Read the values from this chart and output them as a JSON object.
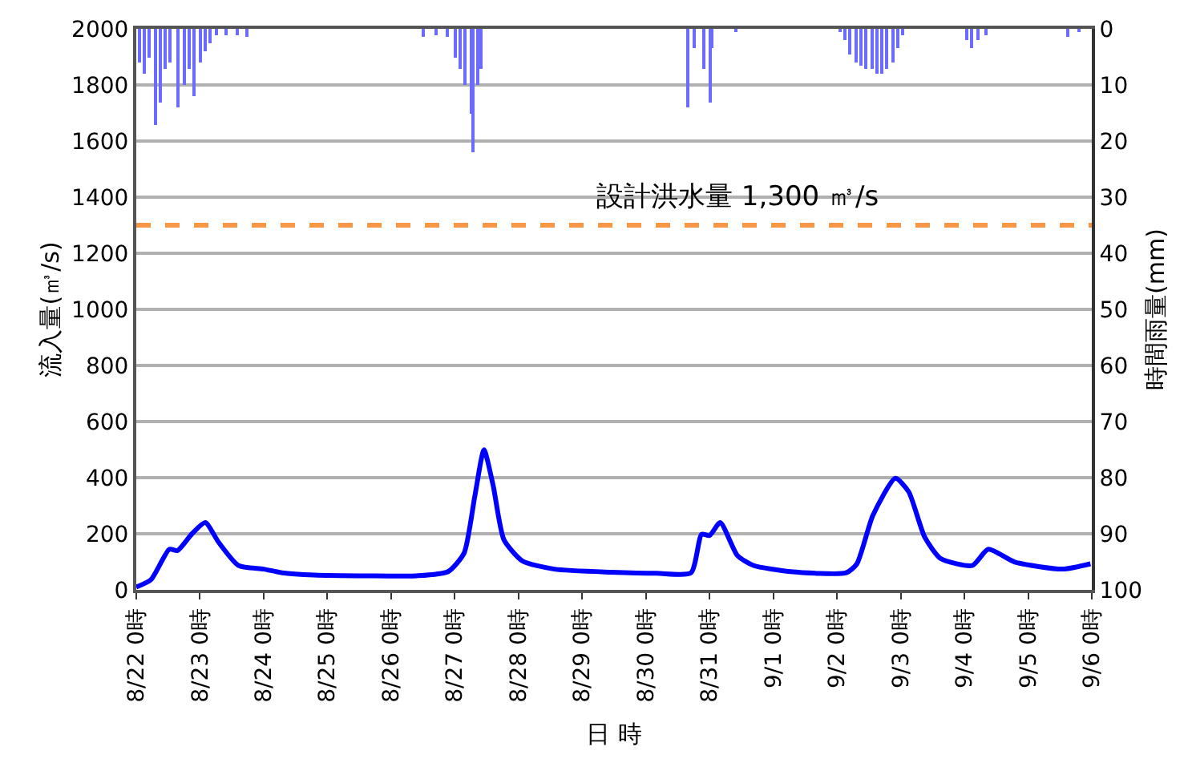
{
  "chart_data": {
    "type": "line",
    "xlabel": "日 時",
    "ylabel": "流入量(㎥/s)",
    "y2label": "時間雨量(mm)",
    "xlim": [
      "--08-22",
      "--09-06"
    ],
    "xticks": [
      {
        "value": "--08-22",
        "label": "8/22 0時"
      },
      {
        "value": "--08-23",
        "label": "8/23 0時"
      },
      {
        "value": "--08-24",
        "label": "8/24 0時"
      },
      {
        "value": "--08-25",
        "label": "8/25 0時"
      },
      {
        "value": "--08-26",
        "label": "8/26 0時"
      },
      {
        "value": "--08-27",
        "label": "8/27 0時"
      },
      {
        "value": "--08-28",
        "label": "8/28 0時"
      },
      {
        "value": "--08-29",
        "label": "8/29 0時"
      },
      {
        "value": "--08-30",
        "label": "8/30 0時"
      },
      {
        "value": "--08-31",
        "label": "8/31 0時"
      },
      {
        "value": "--09-01",
        "label": "9/1 0時"
      },
      {
        "value": "--09-02",
        "label": "9/2 0時"
      },
      {
        "value": "--09-03",
        "label": "9/3 0時"
      },
      {
        "value": "--09-04",
        "label": "9/4 0時"
      },
      {
        "value": "--09-05",
        "label": "9/5 0時"
      },
      {
        "value": "--09-06",
        "label": "9/6 0時"
      }
    ],
    "ylim": [
      0,
      2000
    ],
    "yticks": [
      0,
      200,
      400,
      600,
      800,
      1000,
      1200,
      1400,
      1600,
      1800,
      2000
    ],
    "y2lim": [
      100,
      0
    ],
    "y2ticks": [
      0,
      10,
      20,
      30,
      40,
      50,
      60,
      70,
      80,
      90,
      100
    ],
    "grid": "y",
    "marker": "none",
    "line_style": "solid",
    "ref_lines": [
      {
        "axis": "y",
        "value": 1300,
        "label": "設計洪水量 1,300 ㎥/s",
        "color": "#f79646",
        "line_style": "dashed"
      }
    ],
    "series": [
      {
        "color": "#0000ff",
        "x": [
          "--08-22T00:00",
          "--08-22T05:30",
          "--08-22T12:30",
          "--08-22T15:30",
          "--08-22T21:00",
          "--08-23T02:00",
          "--08-23T07:00",
          "--08-23T14:30",
          "--08-24T00:00",
          "--08-24T07:00",
          "--08-24T19:00",
          "--08-25T15:00",
          "--08-26T09:30",
          "--08-26T21:30",
          "--08-27T03:30",
          "--08-27T07:30",
          "--08-27T11:00",
          "--08-27T14:30",
          "--08-27T18:30",
          "--08-28T01:30",
          "--08-28T13:30",
          "--08-30T04:00",
          "--08-30T17:00",
          "--08-30T21:00",
          "--08-31T00:00",
          "--08-31T04:00",
          "--08-31T10:30",
          "--08-31T16:30",
          "--09-01T06:30",
          "--09-02T03:30",
          "--09-02T07:30",
          "--09-02T13:30",
          "--09-02T22:00",
          "--09-03T03:00",
          "--09-03T09:00",
          "--09-03T15:00",
          "--09-04T03:00",
          "--09-04T09:00",
          "--09-04T19:00",
          "--09-05T13:00",
          "--09-05T23:30"
        ],
        "values": [
          10,
          36,
          145,
          140,
          200,
          240,
          170,
          87,
          74,
          61,
          53,
          50,
          50,
          65,
          131,
          331,
          499,
          370,
          179,
          103,
          74,
          59,
          61,
          198,
          194,
          240,
          122,
          87,
          65,
          61,
          93,
          265,
          398,
          350,
          189,
          112,
          87,
          145,
          99,
          74,
          93
        ]
      },
      {
        "type": "bar",
        "axis": "y2",
        "color": "#6b6bff",
        "x": [
          "--08-22T01:00",
          "--08-22T03:00",
          "--08-22T05:00",
          "--08-22T07:00",
          "--08-22T09:00",
          "--08-22T11:00",
          "--08-22T13:00",
          "--08-22T16:00",
          "--08-22T18:00",
          "--08-22T20:00",
          "--08-22T22:00",
          "--08-23T00:00",
          "--08-23T02:00",
          "--08-23T04:00",
          "--08-23T06:00",
          "--08-23T10:00",
          "--08-23T14:00",
          "--08-23T18:00",
          "--08-26T12:00",
          "--08-26T17:00",
          "--08-26T21:00",
          "--08-27T00:00",
          "--08-27T02:00",
          "--08-27T04:00",
          "--08-27T06:00",
          "--08-27T07:00",
          "--08-27T09:00",
          "--08-27T10:00",
          "--08-30T16:00",
          "--08-30T18:00",
          "--08-30T22:00",
          "--08-31T00:00",
          "--08-31T01:00",
          "--08-31T10:00",
          "--09-02T01:00",
          "--09-02T03:00",
          "--09-02T05:00",
          "--09-02T07:00",
          "--09-02T09:00",
          "--09-02T11:00",
          "--09-02T13:00",
          "--09-02T15:00",
          "--09-02T17:00",
          "--09-02T19:00",
          "--09-02T21:00",
          "--09-02T23:00",
          "--09-03T01:00",
          "--09-04T01:00",
          "--09-04T03:00",
          "--09-04T05:00",
          "--09-04T08:00",
          "--09-05T15:00",
          "--09-05T19:00"
        ],
        "values": [
          6,
          8,
          5,
          17,
          13,
          7,
          6,
          14,
          10,
          7,
          12,
          6,
          4,
          2.5,
          1,
          1,
          1,
          1.5,
          1.5,
          1,
          1.5,
          5,
          7,
          10,
          15,
          22,
          10,
          7,
          14,
          3.5,
          7,
          13,
          3.5,
          0.5,
          0.5,
          2,
          4.5,
          6,
          6.5,
          7,
          7,
          8,
          8,
          7,
          6,
          3.5,
          1,
          2,
          3.5,
          2,
          1,
          1.5,
          0.5
        ]
      }
    ]
  }
}
